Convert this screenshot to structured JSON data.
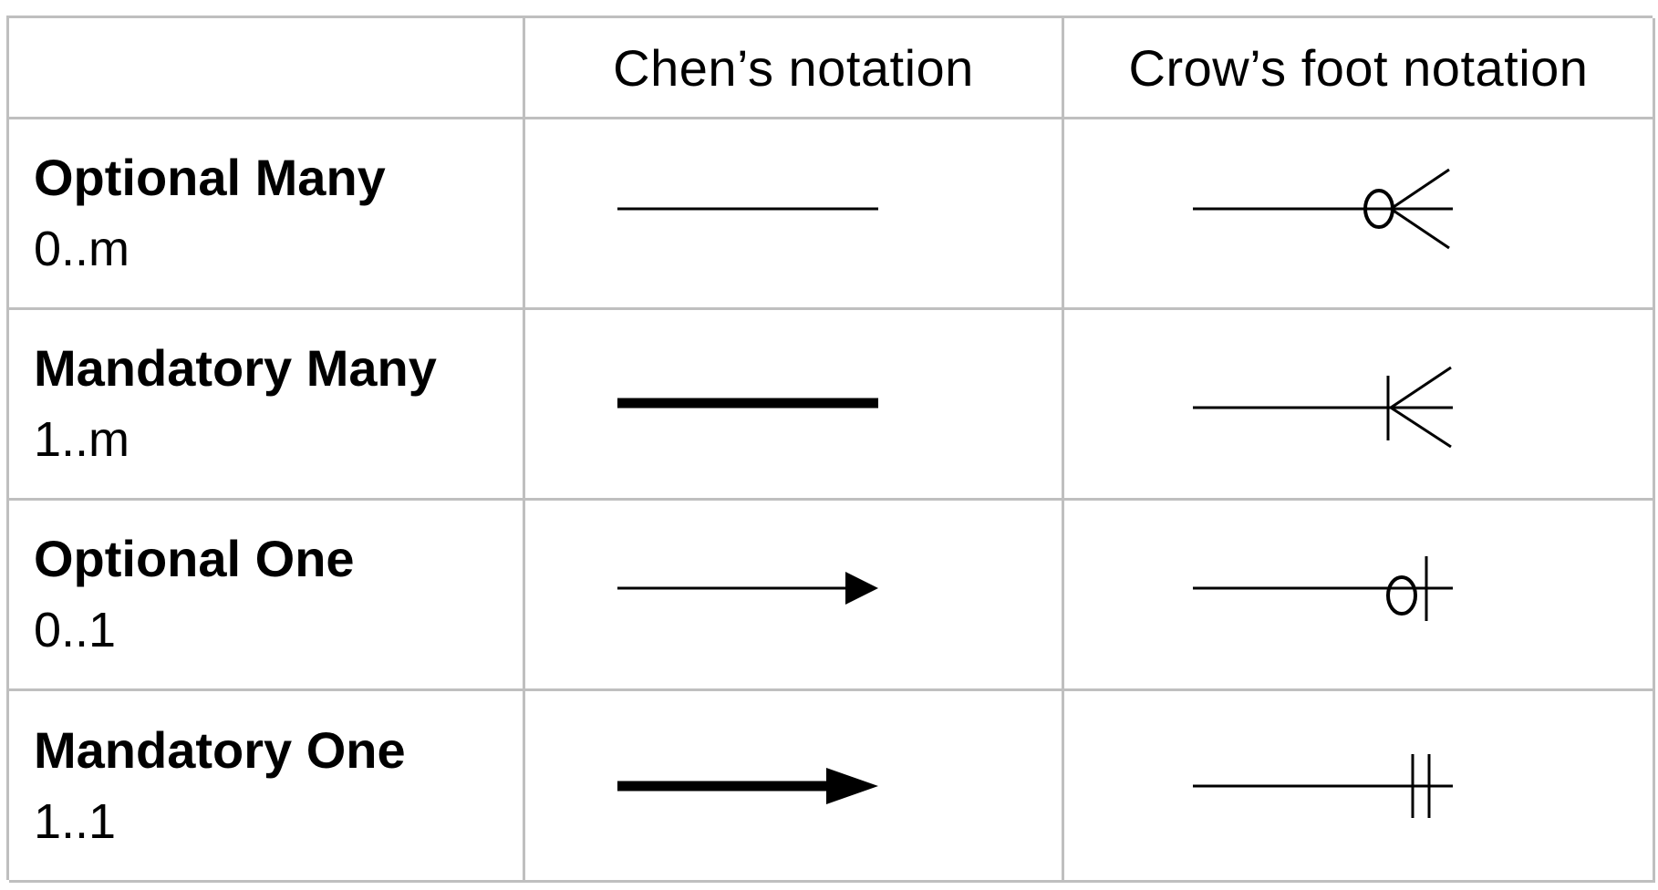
{
  "headers": {
    "corner": "",
    "chen": "Chen’s notation",
    "crows_foot": "Crow’s foot notation"
  },
  "rows": [
    {
      "name": "Optional Many",
      "range": "0..m",
      "chen_symbol": "thin-line-icon",
      "crow_symbol": "zero-or-many-icon"
    },
    {
      "name": "Mandatory Many",
      "range": "1..m",
      "chen_symbol": "thick-line-icon",
      "crow_symbol": "one-or-many-icon"
    },
    {
      "name": "Optional One",
      "range": "0..1",
      "chen_symbol": "thin-arrow-icon",
      "crow_symbol": "zero-or-one-icon"
    },
    {
      "name": "Mandatory One",
      "range": "1..1",
      "chen_symbol": "thick-arrow-icon",
      "crow_symbol": "exactly-one-icon"
    }
  ],
  "colors": {
    "grid_line": "#bfbfbf",
    "ink": "#000000",
    "background": "#ffffff"
  }
}
